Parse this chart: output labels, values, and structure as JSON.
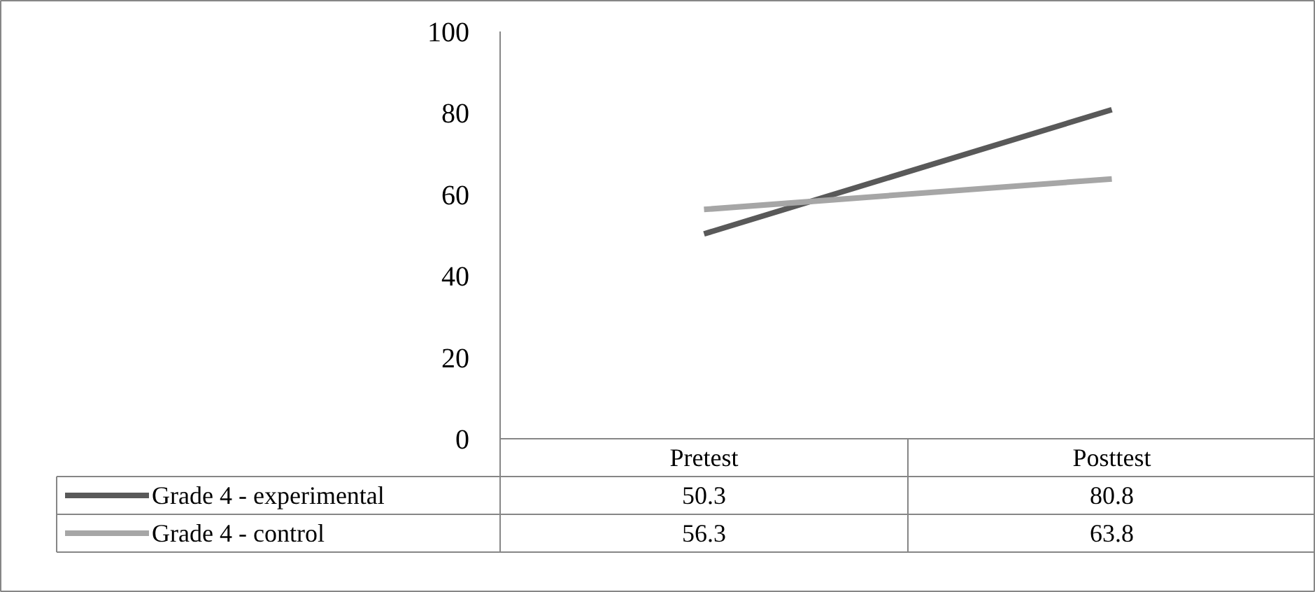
{
  "chart_data": {
    "type": "line",
    "categories": [
      "Pretest",
      "Posttest"
    ],
    "series": [
      {
        "name": "Grade 4 - experimental",
        "color": "#595959",
        "values": [
          50.3,
          80.8
        ]
      },
      {
        "name": "Grade 4 - control",
        "color": "#a6a6a6",
        "values": [
          56.3,
          63.8
        ]
      }
    ],
    "ylim": [
      0,
      100
    ],
    "yticks": [
      0,
      20,
      40,
      60,
      80,
      100
    ],
    "data_labels": true,
    "legend": "bottom"
  }
}
